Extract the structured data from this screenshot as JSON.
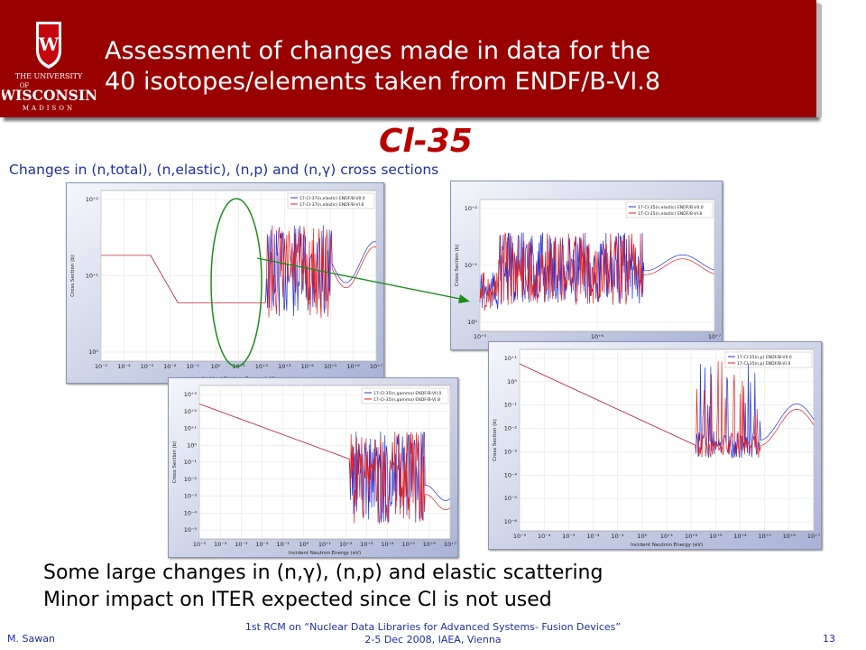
{
  "header": {
    "logo": {
      "text_line1": "THE UNIVERSITY",
      "text_line2": "WISCONSIN",
      "text_line3": "MADISON",
      "text_of": "OF",
      "crest_letter": "W",
      "icon": "uw-crest-icon"
    },
    "title_line1": "Assessment of changes made in data for the",
    "title_line2": "40 isotopes/elements taken from ENDF/B-VI.8",
    "bg_color": "#990000"
  },
  "subject": "Cl-35",
  "subtitle": "Changes in (n,total), (n,elastic), (n,p) and (n,γ) cross sections",
  "plots": [
    {
      "id": "elastic-cl37",
      "legend": [
        "17-Cl-37(n,elastic) ENDF/B-VII.0",
        "17-Cl-37(n,elastic) ENDF/B-VI.8"
      ],
      "ylabel": "Cross Section (b)",
      "xlabel": "Incident Neutron Energy (eV)",
      "xticks": [
        "10⁻⁵",
        "10⁻⁴",
        "10⁻³",
        "10⁻²",
        "10⁻¹",
        "10⁰",
        "10⁺¹",
        "10⁺²",
        "10⁺³",
        "10⁺⁴",
        "10⁺⁵",
        "10⁺⁶",
        "10⁺⁷"
      ],
      "yticks": [
        "10⁺²",
        "10⁺¹",
        "10⁰"
      ]
    },
    {
      "id": "elastic-cl35-zoom",
      "legend": [
        "17-Cl-35(n,elastic) ENDF/B-VII.0",
        "17-Cl-35(n,elastic) ENDF/B-VI.8"
      ],
      "ylabel": "Cross Section (b)",
      "xlabel": "Incident Neutron Energy (eV)",
      "xticks": [
        "10⁺⁵",
        "10⁺⁶",
        "10⁺⁷"
      ],
      "yticks": [
        "10⁺²",
        "10⁺¹",
        "10⁰"
      ]
    },
    {
      "id": "gamma-cl35",
      "legend": [
        "17-Cl-35(n,gamma) ENDF/B-VII.0",
        "17-Cl-35(n,gamma) ENDF/B-VI.8"
      ],
      "ylabel": "Cross Section (b)",
      "xlabel": "Incident Neutron Energy (eV)",
      "xticks": [
        "10⁻⁵",
        "10⁻⁴",
        "10⁻³",
        "10⁻²",
        "10⁻¹",
        "10⁰",
        "10⁺¹",
        "10⁺²",
        "10⁺³",
        "10⁺⁴",
        "10⁺⁵",
        "10⁺⁶",
        "10⁺⁷"
      ],
      "yticks": [
        "10⁺³",
        "10⁺²",
        "10⁺¹",
        "10⁰",
        "10⁻¹",
        "10⁻²",
        "10⁻³",
        "10⁻⁴",
        "10⁻⁵"
      ]
    },
    {
      "id": "np-cl35",
      "legend": [
        "17-Cl-35(n,p) ENDF/B-VII.0",
        "17-Cl-35(n,p) ENDF/B-VI.8"
      ],
      "ylabel": "Cross Section (b)",
      "xlabel": "Incident Neutron Energy (eV)",
      "xticks": [
        "10⁻⁵",
        "10⁻⁴",
        "10⁻³",
        "10⁻²",
        "10⁻¹",
        "10⁰",
        "10⁺¹",
        "10⁺²",
        "10⁺³",
        "10⁺⁴",
        "10⁺⁵",
        "10⁺⁶",
        "10⁺⁷"
      ],
      "yticks": [
        "10⁺¹",
        "10⁰",
        "10⁻¹",
        "10⁻²",
        "10⁻³",
        "10⁻⁴",
        "10⁻⁵",
        "10⁻⁶"
      ]
    }
  ],
  "series_colors": {
    "vii0": "#2233dd",
    "vi8": "#e02020"
  },
  "annotation": {
    "ellipse_color": "#1e8a1e",
    "arrow_color": "#1e8a1e"
  },
  "bullets": [
    "Some large changes in (n,γ), (n,p) and elastic scattering",
    "Minor impact on ITER expected since Cl is not used"
  ],
  "footer": {
    "left": "M. Sawan",
    "center_line1": "1st RCM on “Nuclear Data Libraries for Advanced Systems- Fusion Devices”",
    "center_line2": "2-5 Dec 2008, IAEA, Vienna",
    "page": "13"
  }
}
